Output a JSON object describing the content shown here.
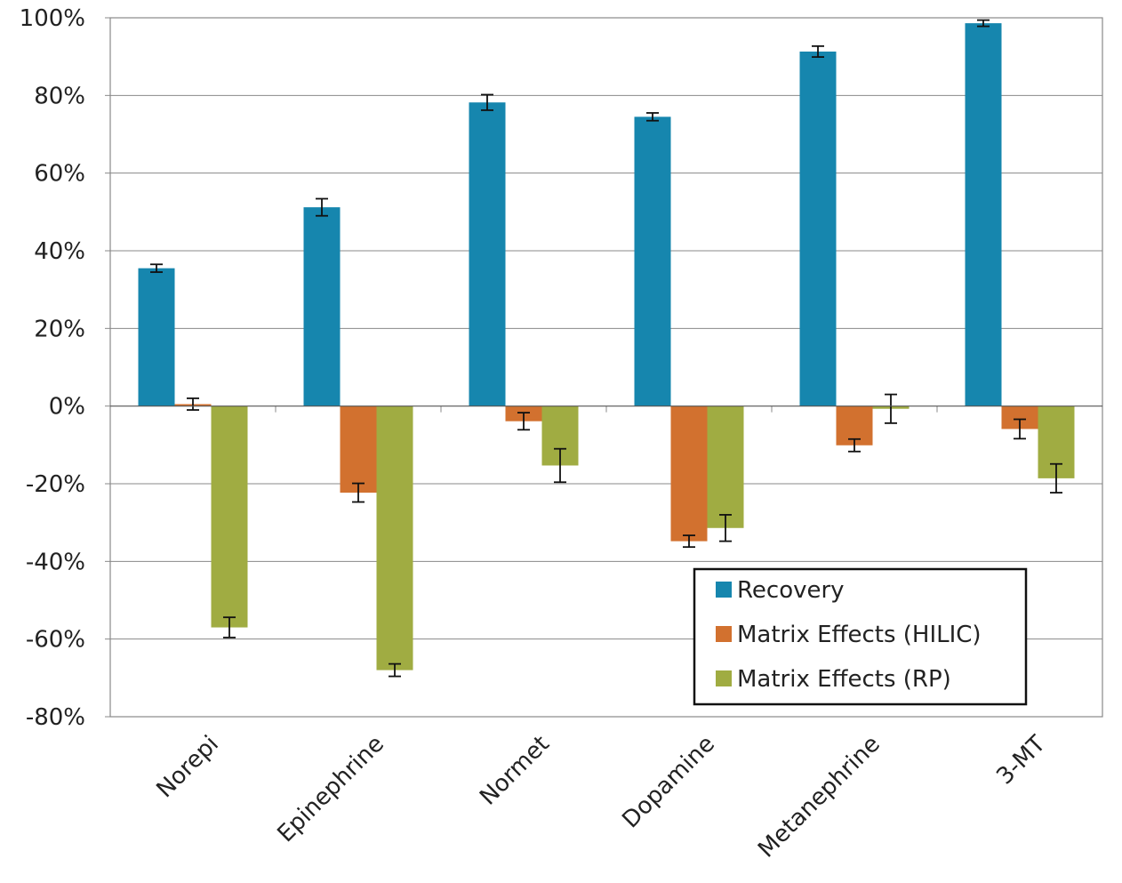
{
  "chart_data": {
    "type": "bar",
    "title": "",
    "xlabel": "",
    "ylabel": "",
    "ylim": [
      -80,
      100
    ],
    "yticks": [
      100,
      80,
      60,
      40,
      20,
      0,
      -20,
      -40,
      -60,
      -80
    ],
    "ytick_labels": [
      "100%",
      "80%",
      "60%",
      "40%",
      "20%",
      "0%",
      "-20%",
      "-40%",
      "-60%",
      "-80%"
    ],
    "grid": true,
    "legend_position": "bottom-right",
    "categories": [
      "Norepi",
      "Epinephrine",
      "Normet",
      "Dopamine",
      "Metanephrine",
      "3-MT"
    ],
    "series": [
      {
        "name": "Recovery",
        "color": "#1686AE",
        "values": [
          35.5,
          51.2,
          78.2,
          74.5,
          91.3,
          98.6
        ],
        "errors": [
          1.0,
          2.2,
          2.0,
          1.0,
          1.4,
          0.8
        ]
      },
      {
        "name": "Matrix Effects (HILIC)",
        "color": "#D2712F",
        "values": [
          0.5,
          -22.3,
          -3.9,
          -34.8,
          -10.1,
          -5.9
        ],
        "errors": [
          1.5,
          2.4,
          2.2,
          1.5,
          1.6,
          2.5
        ]
      },
      {
        "name": "Matrix Effects (RP)",
        "color": "#A0AC42",
        "values": [
          -57.0,
          -68.0,
          -15.3,
          -31.4,
          -0.7,
          -18.6
        ],
        "errors": [
          2.6,
          1.6,
          4.3,
          3.4,
          3.7,
          3.7
        ]
      }
    ]
  }
}
